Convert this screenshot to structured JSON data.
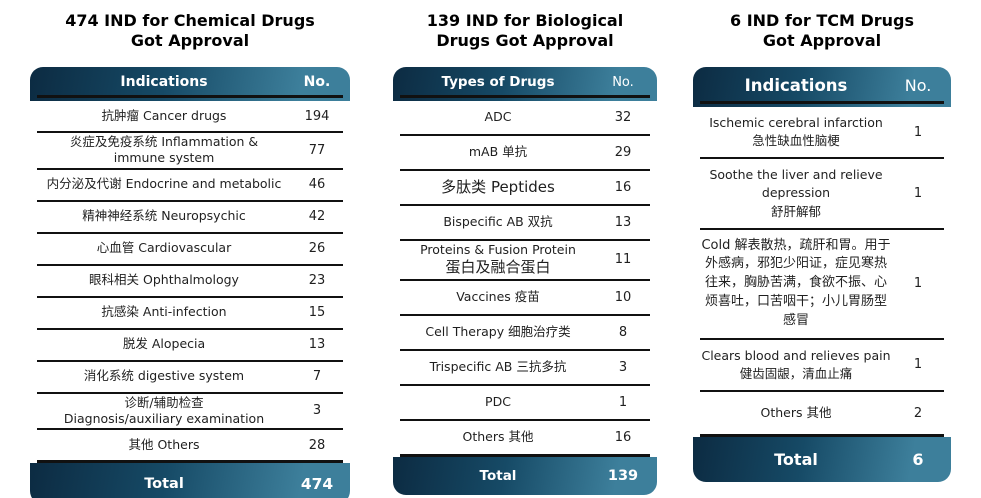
{
  "colors": {
    "background": "#ffffff",
    "gradient_dark": "#0c2b42",
    "gradient_mid": "#164a66",
    "gradient_light": "#3d7f9b",
    "divider": "#111111",
    "header_text": "#ffffff",
    "body_text": "#1f1f1f",
    "title_text": "#000000"
  },
  "chart_data": [
    {
      "type": "table",
      "title_line1": "474 IND for Chemical Drugs",
      "title_line2": "Got Approval",
      "columns": {
        "label": "Indications",
        "value": "No."
      },
      "rows": [
        {
          "line1": "抗肿瘤 Cancer drugs",
          "value": "194"
        },
        {
          "line1": "炎症及免疫系统 Inflammation &",
          "line2": "immune system",
          "value": "77"
        },
        {
          "line1": "内分泌及代谢 Endocrine and metabolic",
          "value": "46"
        },
        {
          "line1": "精神神经系统 Neuropsychic",
          "value": "42"
        },
        {
          "line1": "心血管 Cardiovascular",
          "value": "26"
        },
        {
          "line1": "眼科相关 Ophthalmology",
          "value": "23"
        },
        {
          "line1": "抗感染 Anti-infection",
          "value": "15"
        },
        {
          "line1": "脱发 Alopecia",
          "value": "13"
        },
        {
          "line1": "消化系统 digestive system",
          "value": "7"
        },
        {
          "line1": "诊断/辅助检查",
          "line2": "Diagnosis/auxiliary examination",
          "value": "3"
        },
        {
          "line1": "其他 Others",
          "value": "28"
        }
      ],
      "total_label": "Total",
      "total_value": "474"
    },
    {
      "type": "table",
      "title_line1": "139 IND for Biological",
      "title_line2": "Drugs Got Approval",
      "columns": {
        "label": "Types of Drugs",
        "value": "No."
      },
      "rows": [
        {
          "line1": "ADC",
          "value": "32"
        },
        {
          "line1": "mAB 单抗",
          "value": "29"
        },
        {
          "line1": "多肽类 Peptides",
          "value": "16"
        },
        {
          "line1": "Bispecific AB 双抗",
          "value": "13"
        },
        {
          "line1": "Proteins & Fusion Protein",
          "line2": "蛋白及融合蛋白",
          "value": "11"
        },
        {
          "line1": "Vaccines 疫苗",
          "value": "10"
        },
        {
          "line1": "Cell Therapy 细胞治疗类",
          "value": "8"
        },
        {
          "line1": "Trispecific AB 三抗多抗",
          "value": "3"
        },
        {
          "line1": "PDC",
          "value": "1"
        },
        {
          "line1": "Others 其他",
          "value": "16"
        }
      ],
      "total_label": "Total",
      "total_value": "139"
    },
    {
      "type": "table",
      "title_line1": "6 IND for TCM Drugs",
      "title_line2": "Got Approval",
      "columns": {
        "label": "Indications",
        "value": "No."
      },
      "rows": [
        {
          "line1": "Ischemic cerebral infarction",
          "line2": "急性缺血性脑梗",
          "value": "1"
        },
        {
          "line1": "Soothe the liver and relieve depression",
          "line2": "舒肝解郁",
          "value": "1"
        },
        {
          "line1": "Cold 解表散热，疏肝和胃。用于外感病，邪犯少阳证，症见寒热往来，胸胁苦满，食欲不振、心烦喜吐，口苦咽干；小儿胃肠型感冒",
          "value": "1"
        },
        {
          "line1": "Clears blood and relieves pain",
          "line2": "健齿固龈，清血止痛",
          "value": "1"
        },
        {
          "line1": "Others 其他",
          "value": "2"
        }
      ],
      "total_label": "Total",
      "total_value": "6"
    }
  ]
}
